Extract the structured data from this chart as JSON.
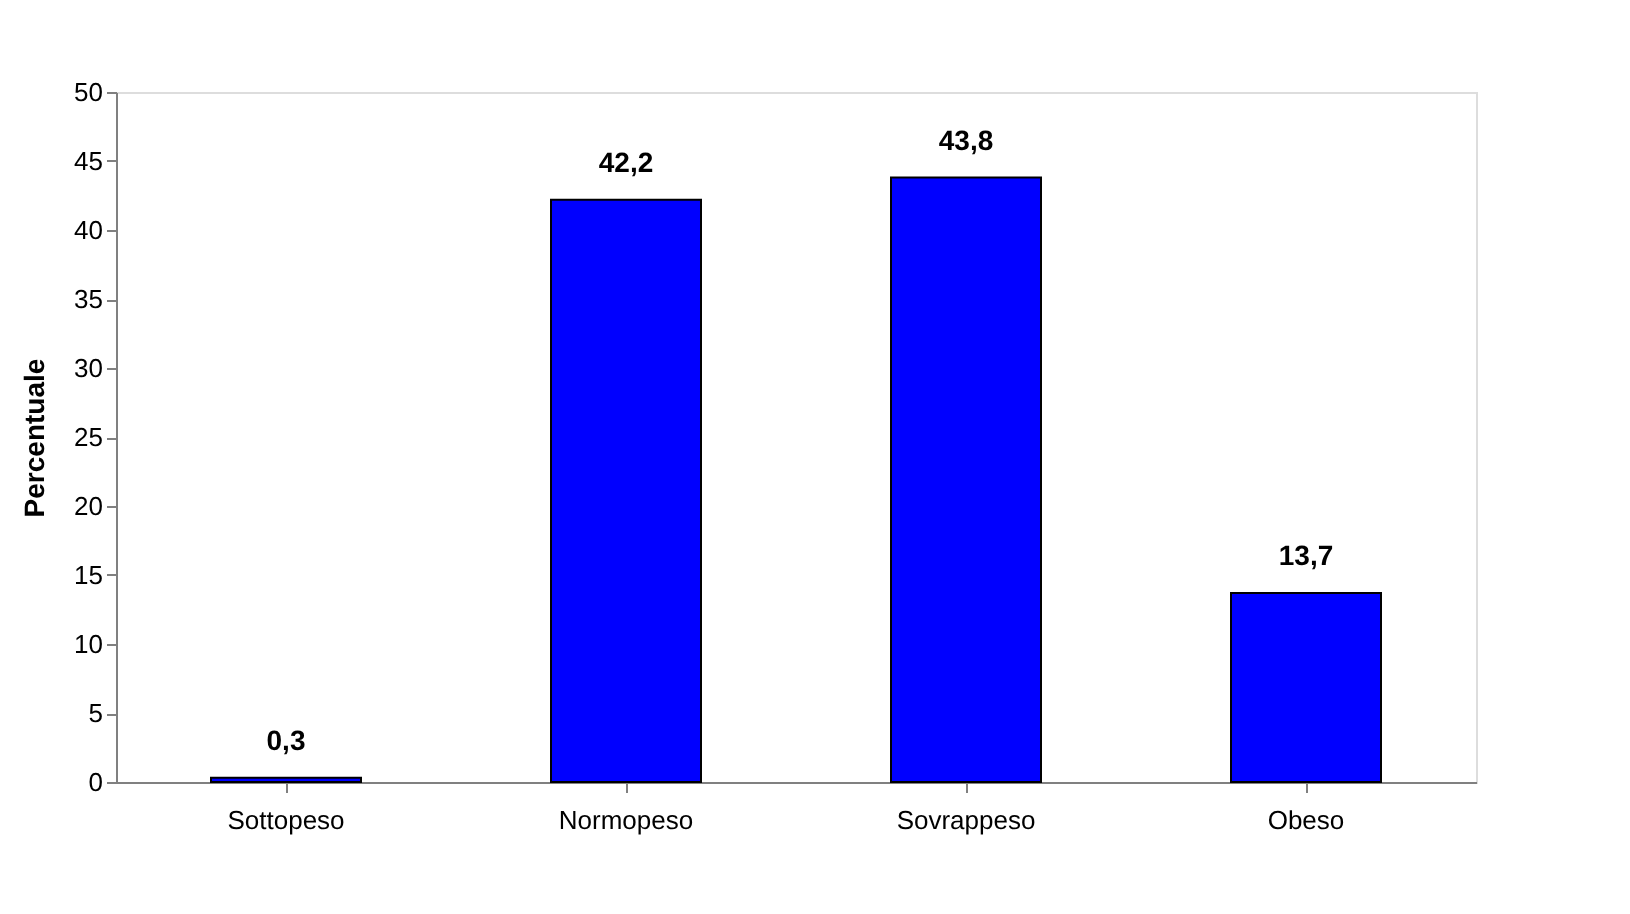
{
  "chart_data": {
    "type": "bar",
    "ylabel": "Percentuale",
    "categories": [
      "Sottopeso",
      "Normopeso",
      "Sovrappeso",
      "Obeso"
    ],
    "values": [
      0.3,
      42.2,
      43.8,
      13.7
    ],
    "value_labels": [
      "0,3",
      "42,2",
      "43,8",
      "13,7"
    ],
    "color": "#0000ff",
    "ylim": [
      0,
      50
    ],
    "yticks": [
      0,
      5,
      10,
      15,
      20,
      25,
      30,
      35,
      40,
      45,
      50
    ],
    "grid": false
  }
}
